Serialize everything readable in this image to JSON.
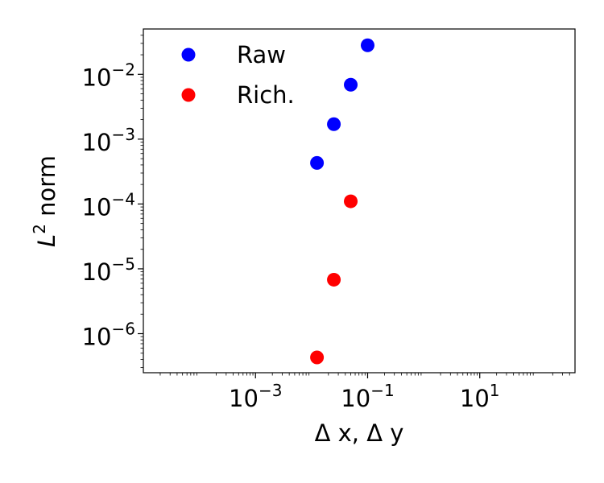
{
  "chart_data": {
    "type": "scatter",
    "xscale": "log",
    "yscale": "log",
    "xlim": [
      1e-05,
      500
    ],
    "ylim": [
      2.5e-07,
      0.05
    ],
    "xlabel": "Δ x, Δ y",
    "ylabel_main": "L",
    "ylabel_sup": "2",
    "ylabel_rest": " norm",
    "grid": false,
    "legend_position": "upper-left",
    "x_ticks": [
      {
        "value": 0.001,
        "base": "10",
        "exp": "−3"
      },
      {
        "value": 0.1,
        "base": "10",
        "exp": "−1"
      },
      {
        "value": 10,
        "base": "10",
        "exp": "1"
      }
    ],
    "y_ticks": [
      {
        "value": 1e-06,
        "base": "10",
        "exp": "−6"
      },
      {
        "value": 1e-05,
        "base": "10",
        "exp": "−5"
      },
      {
        "value": 0.0001,
        "base": "10",
        "exp": "−4"
      },
      {
        "value": 0.001,
        "base": "10",
        "exp": "−3"
      },
      {
        "value": 0.01,
        "base": "10",
        "exp": "−2"
      }
    ],
    "series": [
      {
        "name": "Raw",
        "color": "#0000ff",
        "x": [
          0.0125,
          0.025,
          0.05,
          0.1
        ],
        "y": [
          0.00043,
          0.0017,
          0.0069,
          0.028
        ]
      },
      {
        "name": "Rich.",
        "color": "#ff0000",
        "x": [
          0.0125,
          0.025,
          0.05
        ],
        "y": [
          4.3e-07,
          6.8e-06,
          0.00011
        ]
      }
    ]
  }
}
